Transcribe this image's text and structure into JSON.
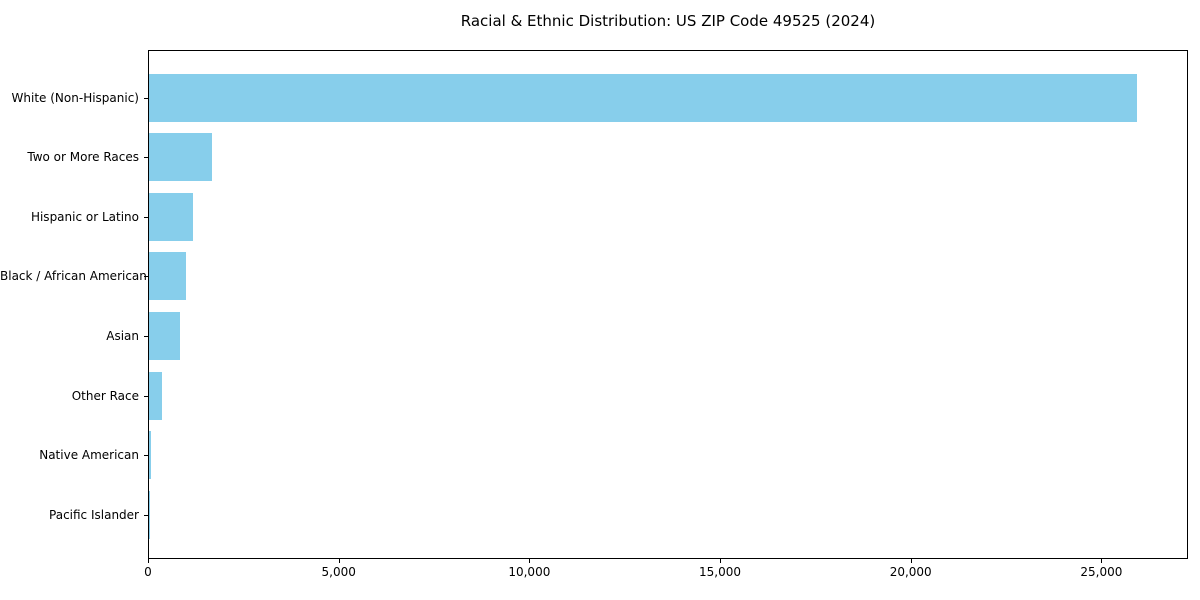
{
  "title": "Racial & Ethnic Distribution: US ZIP Code 49525 (2024)",
  "colors": {
    "bar": "#87CEEB",
    "axis": "#000000",
    "text": "#000000",
    "background": "#ffffff"
  },
  "chart_data": {
    "type": "bar",
    "orientation": "horizontal",
    "title": "Racial & Ethnic Distribution: US ZIP Code 49525 (2024)",
    "xlabel": "",
    "ylabel": "",
    "categories": [
      "White (Non-Hispanic)",
      "Two or More Races",
      "Hispanic or Latino",
      "Black / African American",
      "Asian",
      "Other Race",
      "Native American",
      "Pacific Islander"
    ],
    "values": [
      25900,
      1650,
      1160,
      960,
      810,
      330,
      40,
      10
    ],
    "bar_color": "#87CEEB",
    "xlim": [
      0,
      27245
    ],
    "x_ticks": [
      0,
      5000,
      10000,
      15000,
      20000,
      25000
    ],
    "x_tick_labels": [
      "0",
      "5,000",
      "10,000",
      "15,000",
      "20,000",
      "25,000"
    ],
    "grid": false,
    "legend": null
  }
}
